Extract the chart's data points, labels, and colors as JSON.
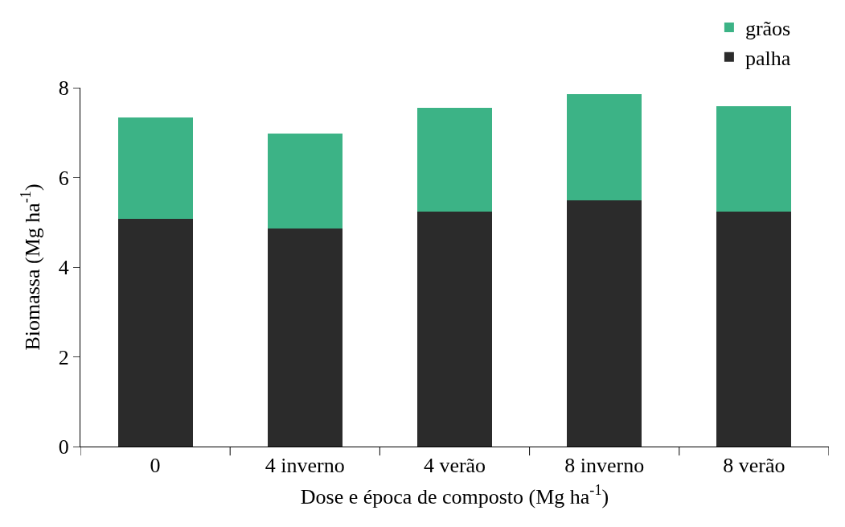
{
  "chart_data": {
    "type": "bar",
    "stacked": true,
    "xlabel": "Dose e época de composto (Mg ha$^{-1}$)",
    "ylabel": "Biomassa (Mg ha$^{-1}$)",
    "categories": [
      "0",
      "4 inverno",
      "4 verão",
      "8 inverno",
      "8 verão"
    ],
    "series": [
      {
        "name": "palha",
        "color": "#2b2b2b",
        "values": [
          5.08,
          4.87,
          5.24,
          5.49,
          5.24
        ]
      },
      {
        "name": "grãos",
        "color": "#3cb386",
        "values": [
          2.26,
          2.11,
          2.32,
          2.36,
          2.35
        ]
      }
    ],
    "ylim": [
      0,
      8
    ],
    "yticks": [
      0,
      2,
      4,
      6,
      8
    ],
    "legend": "top right"
  }
}
